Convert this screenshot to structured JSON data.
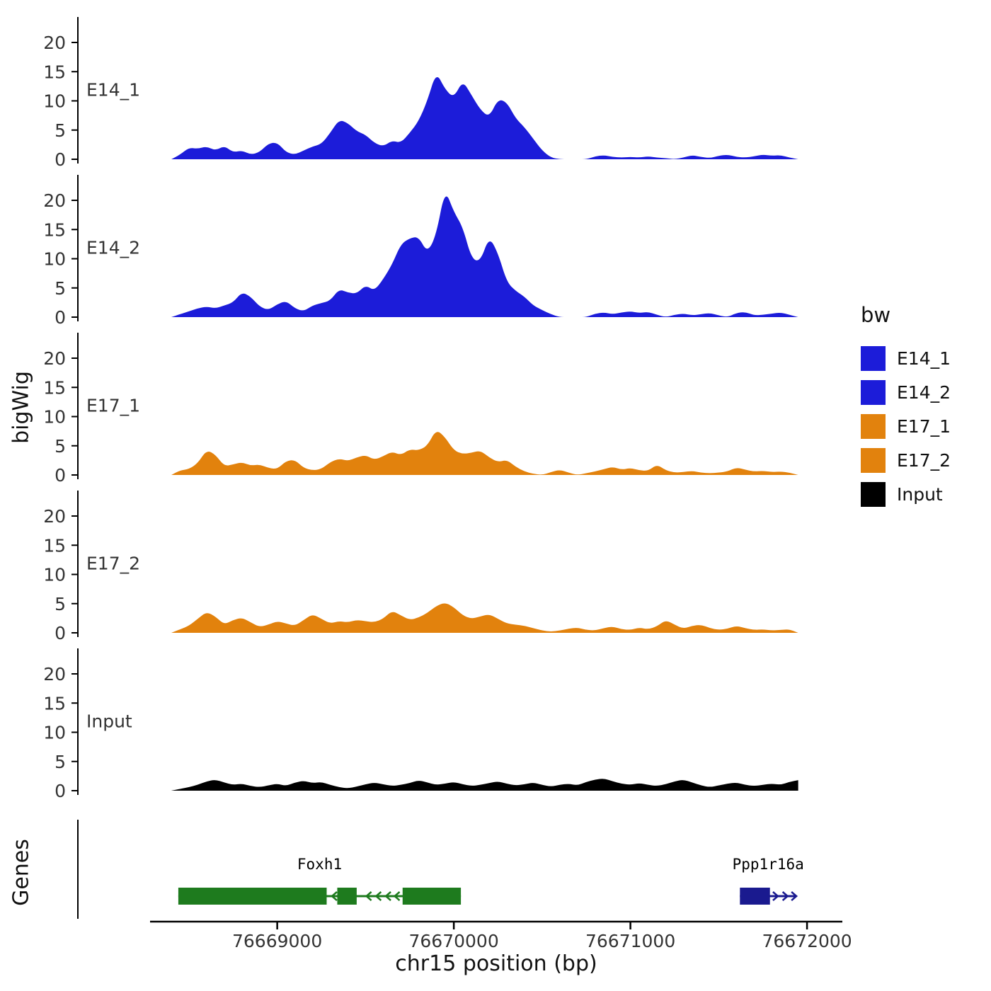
{
  "axes": {
    "y_title": "bigWig",
    "x_title": "chr15 position (bp)",
    "y_ticks": [
      0,
      5,
      10,
      15,
      20
    ],
    "x_ticks": [
      {
        "pos": 76669000,
        "label": "76669000"
      },
      {
        "pos": 76670000,
        "label": "76670000"
      },
      {
        "pos": 76671000,
        "label": "76671000"
      },
      {
        "pos": 76672000,
        "label": "76672000"
      }
    ],
    "x_range": [
      76668280,
      76672200
    ],
    "y_range": [
      0,
      23.8
    ]
  },
  "genes_panel": {
    "title": "Genes"
  },
  "legend": {
    "title": "bw",
    "items": [
      {
        "label": "E14_1",
        "color": "#1c1cd9"
      },
      {
        "label": "E14_2",
        "color": "#1c1cd9"
      },
      {
        "label": "E17_1",
        "color": "#e2820d"
      },
      {
        "label": "E17_2",
        "color": "#e2820d"
      },
      {
        "label": "Input",
        "color": "#000000"
      }
    ]
  },
  "chart_data": {
    "type": "area",
    "title": "",
    "xlabel": "chr15 position (bp)",
    "ylabel": "bigWig",
    "xlim": [
      76668280,
      76672200
    ],
    "ylim": [
      0,
      23.8
    ],
    "x_start": 76668400,
    "x_step": 50,
    "tracks": [
      {
        "name": "E14_1",
        "color": "#1c1cd9",
        "values": [
          0,
          0.8,
          2,
          1.8,
          2.2,
          1.5,
          2.3,
          1.2,
          1.5,
          0.8,
          1.2,
          2.7,
          2.9,
          1.2,
          0.8,
          1.5,
          2.2,
          2.6,
          4.5,
          6.8,
          6.2,
          4.8,
          4.2,
          2.8,
          2.2,
          3.2,
          2.8,
          4.5,
          6.5,
          10,
          15,
          12,
          10.5,
          13.5,
          11,
          8.5,
          7.2,
          10.3,
          9.8,
          7,
          5.5,
          3.5,
          1.5,
          0.3,
          0,
          0,
          0,
          0,
          0.5,
          0.7,
          0.4,
          0.3,
          0.4,
          0.3,
          0.5,
          0.3,
          0.2,
          0,
          0.3,
          0.7,
          0.4,
          0.2,
          0.6,
          0.8,
          0.4,
          0.3,
          0.5,
          0.8,
          0.6,
          0.7,
          0.3,
          0
        ]
      },
      {
        "name": "E14_2",
        "color": "#1c1cd9",
        "values": [
          0,
          0.5,
          1,
          1.5,
          1.8,
          1.5,
          2,
          2.5,
          4.3,
          3.5,
          1.8,
          1.2,
          2.2,
          2.8,
          1.5,
          1,
          2,
          2.4,
          2.8,
          4.8,
          4.2,
          4,
          5.5,
          4.5,
          6.5,
          9,
          12.5,
          13.5,
          13.8,
          11,
          14,
          22,
          18,
          15.5,
          10,
          9.5,
          13.8,
          11,
          6,
          4.5,
          3.5,
          2,
          1.2,
          0.5,
          0,
          0,
          0,
          0,
          0.6,
          0.8,
          0.5,
          0.8,
          1,
          0.7,
          0.9,
          0.4,
          0,
          0.4,
          0.6,
          0.3,
          0.5,
          0.7,
          0.3,
          0,
          0.7,
          0.9,
          0.3,
          0.4,
          0.6,
          0.8,
          0.4,
          0
        ]
      },
      {
        "name": "E17_1",
        "color": "#e2820d",
        "values": [
          0,
          0.8,
          1,
          2,
          4.3,
          3.5,
          1.5,
          1.8,
          2.2,
          1.6,
          1.8,
          1.2,
          1,
          2.4,
          2.6,
          1.2,
          0.8,
          1,
          2.2,
          2.8,
          2.4,
          3,
          3.4,
          2.6,
          3.2,
          4,
          3.4,
          4.4,
          4.2,
          5,
          7.8,
          6.5,
          4.2,
          3.6,
          3.8,
          4.2,
          3,
          2.2,
          2.6,
          1.4,
          0.6,
          0.2,
          0,
          0.5,
          0.9,
          0.4,
          0,
          0.3,
          0.6,
          1,
          1.4,
          0.9,
          1.2,
          0.8,
          0.7,
          1.8,
          0.8,
          0.4,
          0.5,
          0.7,
          0.4,
          0.3,
          0.4,
          0.6,
          1.3,
          0.9,
          0.6,
          0.7,
          0.5,
          0.6,
          0.4,
          0
        ]
      },
      {
        "name": "E17_2",
        "color": "#e2820d",
        "values": [
          0,
          0.6,
          1.2,
          2.4,
          3.6,
          2.8,
          1.4,
          2.2,
          2.6,
          1.8,
          1,
          1.4,
          2,
          1.6,
          1.2,
          2.2,
          3.2,
          2.4,
          1.6,
          2,
          1.8,
          2.2,
          2,
          1.8,
          2.4,
          3.8,
          3,
          2.2,
          2.6,
          3.4,
          4.6,
          5.2,
          4.4,
          3,
          2.4,
          2.8,
          3.2,
          2.4,
          1.6,
          1.4,
          1.2,
          0.8,
          0.4,
          0.2,
          0.4,
          0.7,
          0.9,
          0.5,
          0.4,
          0.8,
          1.1,
          0.6,
          0.5,
          0.9,
          0.6,
          1.1,
          2.2,
          1.4,
          0.7,
          1.2,
          1.4,
          0.8,
          0.5,
          0.7,
          1.2,
          0.8,
          0.5,
          0.6,
          0.4,
          0.5,
          0.6,
          0
        ]
      },
      {
        "name": "Input",
        "color": "#000000",
        "values": [
          0,
          0.3,
          0.6,
          1,
          1.6,
          1.9,
          1.4,
          1,
          1.2,
          0.8,
          0.6,
          0.9,
          1.2,
          0.8,
          1.4,
          1.7,
          1.3,
          1.5,
          1,
          0.6,
          0.4,
          0.7,
          1.1,
          1.4,
          1.1,
          0.8,
          1,
          1.3,
          1.8,
          1.4,
          1,
          1.2,
          1.5,
          1.1,
          0.8,
          1,
          1.3,
          1.6,
          1.2,
          0.9,
          1.1,
          1.4,
          1,
          0.7,
          1,
          1.2,
          0.9,
          1.5,
          1.9,
          2.1,
          1.6,
          1.2,
          1,
          1.3,
          1,
          0.8,
          1.1,
          1.6,
          1.9,
          1.4,
          0.9,
          0.6,
          0.9,
          1.2,
          1.4,
          1,
          0.8,
          1,
          1.2,
          1,
          1.5,
          1.8
        ]
      }
    ],
    "genes": [
      {
        "name": "Foxh1",
        "strand": "-",
        "color": "#1e7b1e",
        "start": 76668440,
        "end": 76670040,
        "label_x": 76669240,
        "exons": [
          [
            76668440,
            76669280
          ],
          [
            76669340,
            76669450
          ],
          [
            76669710,
            76670040
          ]
        ],
        "arrows": [
          76669310,
          76669505,
          76669560,
          76669615,
          76669665
        ]
      },
      {
        "name": "Ppp1r16a",
        "strand": "+",
        "color": "#1a1a8f",
        "start": 76671620,
        "end": 76671940,
        "label_x": 76671780,
        "exons": [
          [
            76671620,
            76671790
          ]
        ],
        "arrows": [
          76671835,
          76671890,
          76671940
        ]
      }
    ]
  }
}
